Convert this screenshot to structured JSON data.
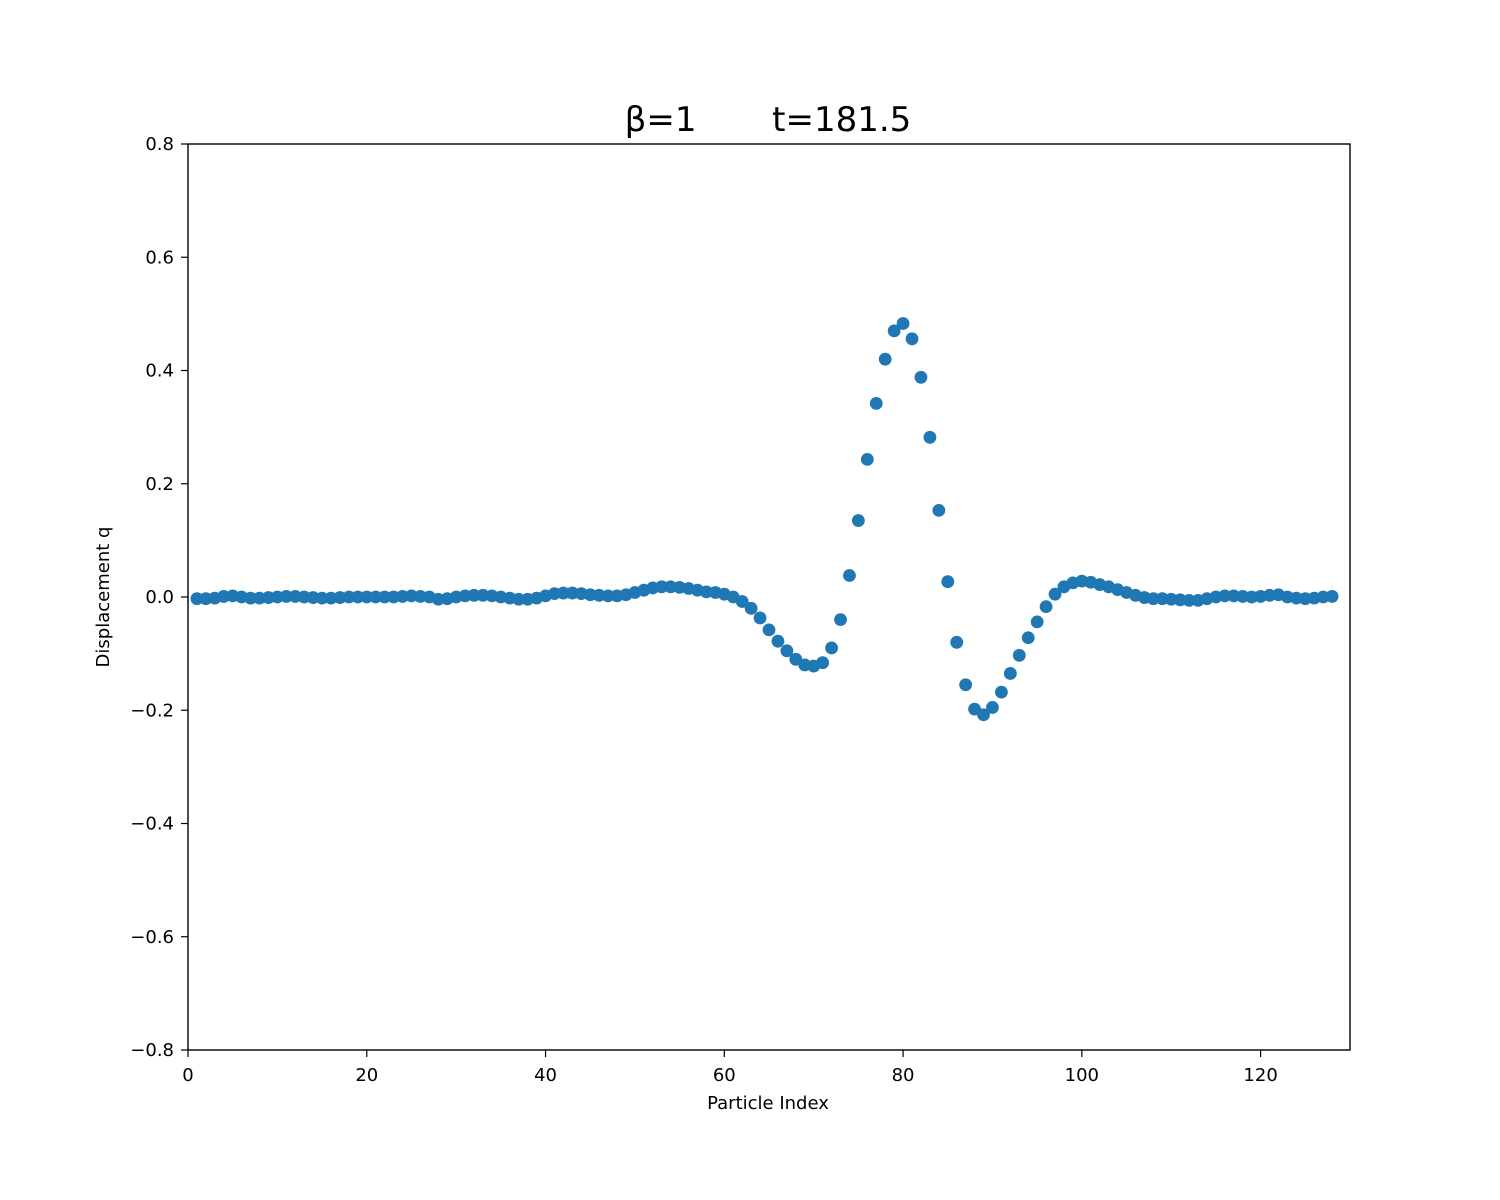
{
  "chart_data": {
    "type": "scatter",
    "title": "β=1       t=181.5",
    "xlabel": "Particle Index",
    "ylabel": "Displacement q",
    "xlim": [
      0,
      130
    ],
    "ylim": [
      -0.8,
      0.8
    ],
    "xticks": [
      0,
      20,
      40,
      60,
      80,
      100,
      120
    ],
    "yticks": [
      -0.8,
      -0.6,
      -0.4,
      -0.2,
      0.0,
      0.2,
      0.4,
      0.6,
      0.8
    ],
    "xtick_labels": [
      "0",
      "20",
      "40",
      "60",
      "80",
      "100",
      "120"
    ],
    "ytick_labels": [
      "−0.8",
      "−0.6",
      "−0.4",
      "−0.2",
      "0.0",
      "0.2",
      "0.4",
      "0.6",
      "0.8"
    ],
    "grid": false,
    "marker_color": "#1f77b4",
    "series": [
      {
        "x": [
          1,
          2,
          3,
          4,
          5,
          6,
          7,
          8,
          9,
          10,
          11,
          12,
          13,
          14,
          15,
          16,
          17,
          18,
          19,
          20,
          21,
          22,
          23,
          24,
          25,
          26,
          27,
          28,
          29,
          30,
          31,
          32,
          33,
          34,
          35,
          36,
          37,
          38,
          39,
          40,
          41,
          42,
          43,
          44,
          45,
          46,
          47,
          48,
          49,
          50,
          51,
          52,
          53,
          54,
          55,
          56,
          57,
          58,
          59,
          60,
          61,
          62,
          63,
          64,
          65,
          66,
          67,
          68,
          69,
          70,
          71,
          72,
          73,
          74,
          75,
          76,
          77,
          78,
          79,
          80,
          81,
          82,
          83,
          84,
          85,
          86,
          87,
          88,
          89,
          90,
          91,
          92,
          93,
          94,
          95,
          96,
          97,
          98,
          99,
          100,
          101,
          102,
          103,
          104,
          105,
          106,
          107,
          108,
          109,
          110,
          111,
          112,
          113,
          114,
          115,
          116,
          117,
          118,
          119,
          120,
          121,
          122,
          123,
          124,
          125,
          126,
          127,
          128
        ],
        "y": [
          -0.003,
          -0.003,
          -0.002,
          0.001,
          0.002,
          0.0,
          -0.002,
          -0.002,
          -0.001,
          0.0,
          0.001,
          0.001,
          0.0,
          -0.001,
          -0.002,
          -0.002,
          -0.001,
          0.0,
          0.0,
          0.0,
          0.0,
          0.0,
          0.0,
          0.001,
          0.002,
          0.001,
          0.0,
          -0.004,
          -0.003,
          0.0,
          0.002,
          0.003,
          0.003,
          0.002,
          0.0,
          -0.002,
          -0.004,
          -0.004,
          -0.002,
          0.002,
          0.006,
          0.007,
          0.007,
          0.006,
          0.004,
          0.003,
          0.002,
          0.002,
          0.004,
          0.008,
          0.012,
          0.016,
          0.018,
          0.018,
          0.017,
          0.015,
          0.012,
          0.009,
          0.008,
          0.005,
          0.0,
          -0.008,
          -0.02,
          -0.037,
          -0.058,
          -0.078,
          -0.095,
          -0.11,
          -0.12,
          -0.122,
          -0.116,
          -0.09,
          -0.04,
          0.038,
          0.135,
          0.243,
          0.342,
          0.42,
          0.47,
          0.483,
          0.456,
          0.388,
          0.282,
          0.153,
          0.027,
          -0.08,
          -0.155,
          -0.198,
          -0.208,
          -0.195,
          -0.168,
          -0.135,
          -0.103,
          -0.072,
          -0.044,
          -0.017,
          0.005,
          0.018,
          0.025,
          0.028,
          0.026,
          0.022,
          0.018,
          0.013,
          0.008,
          0.003,
          -0.001,
          -0.003,
          -0.003,
          -0.004,
          -0.005,
          -0.006,
          -0.006,
          -0.003,
          0.0,
          0.002,
          0.002,
          0.001,
          0.0,
          0.001,
          0.003,
          0.004,
          0.0,
          -0.002,
          -0.003,
          -0.002,
          0.0,
          0.001
        ]
      }
    ]
  }
}
